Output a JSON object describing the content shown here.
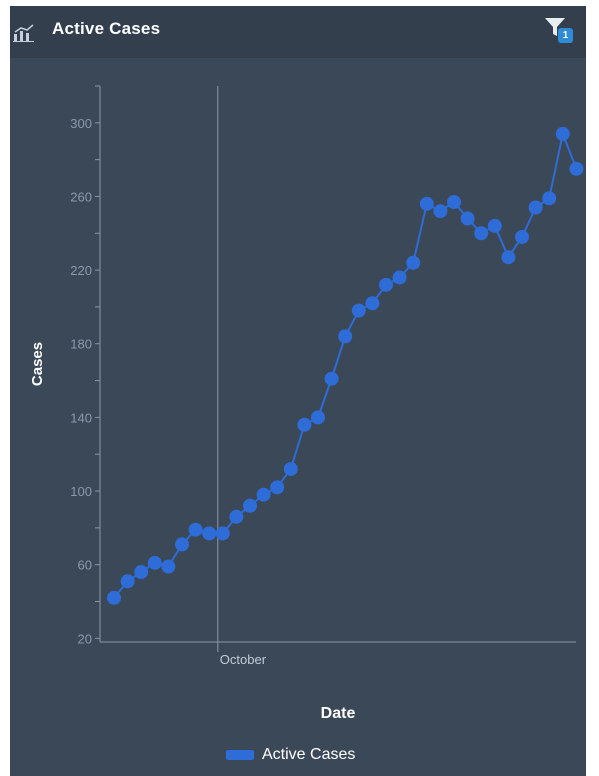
{
  "header": {
    "title": "Active Cases",
    "filter_count": "1",
    "chart_icon": "chart-icon",
    "filter_icon": "filter-icon"
  },
  "colors": {
    "panel": "#3b4858",
    "header": "#333f4d",
    "series": "#2e6cd8",
    "axis": "#8a97a8",
    "text": "#ffffff"
  },
  "chart_data": {
    "type": "line",
    "title": "",
    "xlabel": "Date",
    "ylabel": "Cases",
    "x_tick_labels": [
      "October"
    ],
    "yticks": [
      20,
      60,
      100,
      140,
      180,
      220,
      260,
      300
    ],
    "ylim": [
      18,
      320
    ],
    "grid": false,
    "legend": "bottom",
    "series": [
      {
        "name": "Active Cases",
        "values": [
          42,
          51,
          56,
          61,
          59,
          71,
          79,
          77,
          77,
          86,
          92,
          98,
          102,
          112,
          136,
          140,
          161,
          184,
          198,
          202,
          212,
          216,
          224,
          256,
          252,
          257,
          248,
          240,
          244,
          227,
          238,
          254,
          259,
          294,
          275
        ]
      }
    ],
    "october_index": 8
  }
}
